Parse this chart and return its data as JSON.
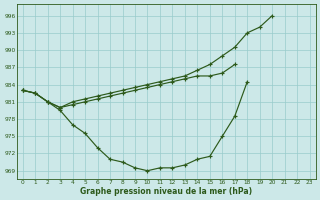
{
  "x": [
    0,
    1,
    2,
    3,
    4,
    5,
    6,
    7,
    8,
    9,
    10,
    11,
    12,
    13,
    14,
    15,
    16,
    17,
    18,
    19,
    20,
    21,
    22,
    23
  ],
  "line_top": [
    983,
    982.5,
    981,
    980,
    981,
    981.5,
    982,
    982.5,
    983,
    983.5,
    984,
    984.5,
    985,
    985.5,
    986.5,
    987.5,
    989,
    990.5,
    993,
    994,
    996,
    null,
    null,
    null
  ],
  "line_mid": [
    983,
    982.5,
    981,
    980,
    980.5,
    981,
    981.5,
    982,
    982.5,
    983,
    983.5,
    984,
    984.5,
    985,
    985.5,
    985.5,
    986,
    987.5,
    null,
    null,
    null,
    null,
    null,
    null
  ],
  "line_bot": [
    983,
    982.5,
    981,
    979.5,
    977,
    975.5,
    973,
    971,
    970.5,
    969.5,
    969,
    969.5,
    969.5,
    970,
    971,
    971.5,
    975,
    978.5,
    984.5,
    null,
    null,
    null,
    null,
    null
  ],
  "yticks": [
    969,
    972,
    975,
    978,
    981,
    984,
    987,
    990,
    993,
    996
  ],
  "xticks": [
    0,
    1,
    2,
    3,
    4,
    5,
    6,
    7,
    8,
    9,
    10,
    11,
    12,
    13,
    14,
    15,
    16,
    17,
    18,
    19,
    20,
    21,
    22,
    23
  ],
  "xlabel": "Graphe pression niveau de la mer (hPa)",
  "ymin": 967.5,
  "ymax": 998,
  "line_color": "#2d5a1b",
  "bg_color": "#cce8e8",
  "grid_color": "#99cccc"
}
